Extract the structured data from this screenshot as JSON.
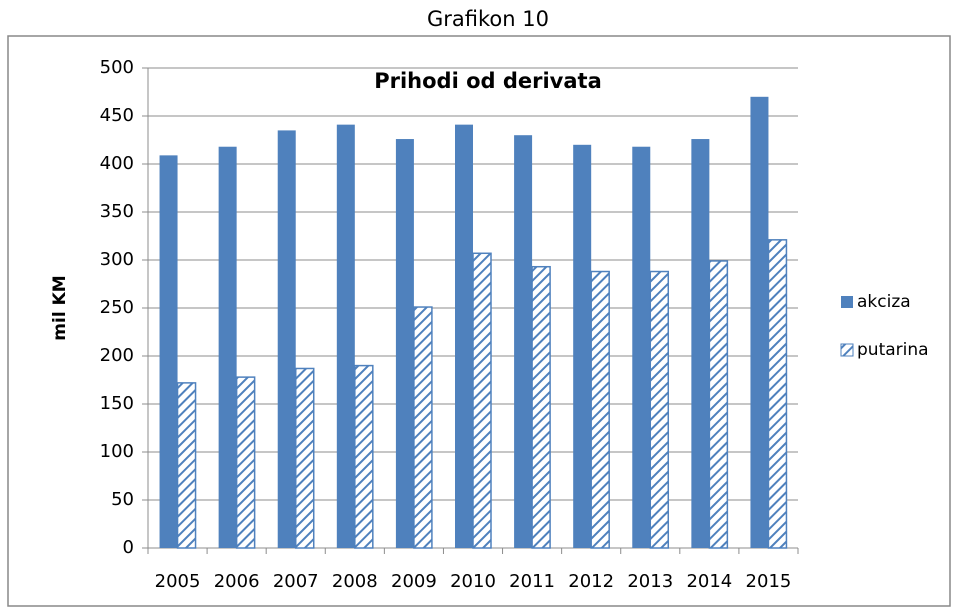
{
  "chart_data": {
    "type": "bar",
    "caption": "Grafikon 10",
    "title": "Prihodi od derivata",
    "ylabel": "mil KM",
    "categories": [
      "2005",
      "2006",
      "2007",
      "2008",
      "2009",
      "2010",
      "2011",
      "2012",
      "2013",
      "2014",
      "2015"
    ],
    "series": [
      {
        "name": "akciza",
        "color": "#4f81bd",
        "pattern": "solid",
        "values": [
          409,
          418,
          435,
          441,
          426,
          441,
          430,
          420,
          418,
          426,
          470
        ]
      },
      {
        "name": "putarina",
        "color": "#4f81bd",
        "pattern": "hatch",
        "values": [
          172,
          178,
          187,
          190,
          251,
          307,
          293,
          288,
          288,
          299,
          321
        ]
      }
    ],
    "ylim": [
      0,
      500
    ],
    "yticks": [
      0,
      50,
      100,
      150,
      200,
      250,
      300,
      350,
      400,
      450,
      500
    ],
    "grid": true,
    "legend": "right"
  }
}
